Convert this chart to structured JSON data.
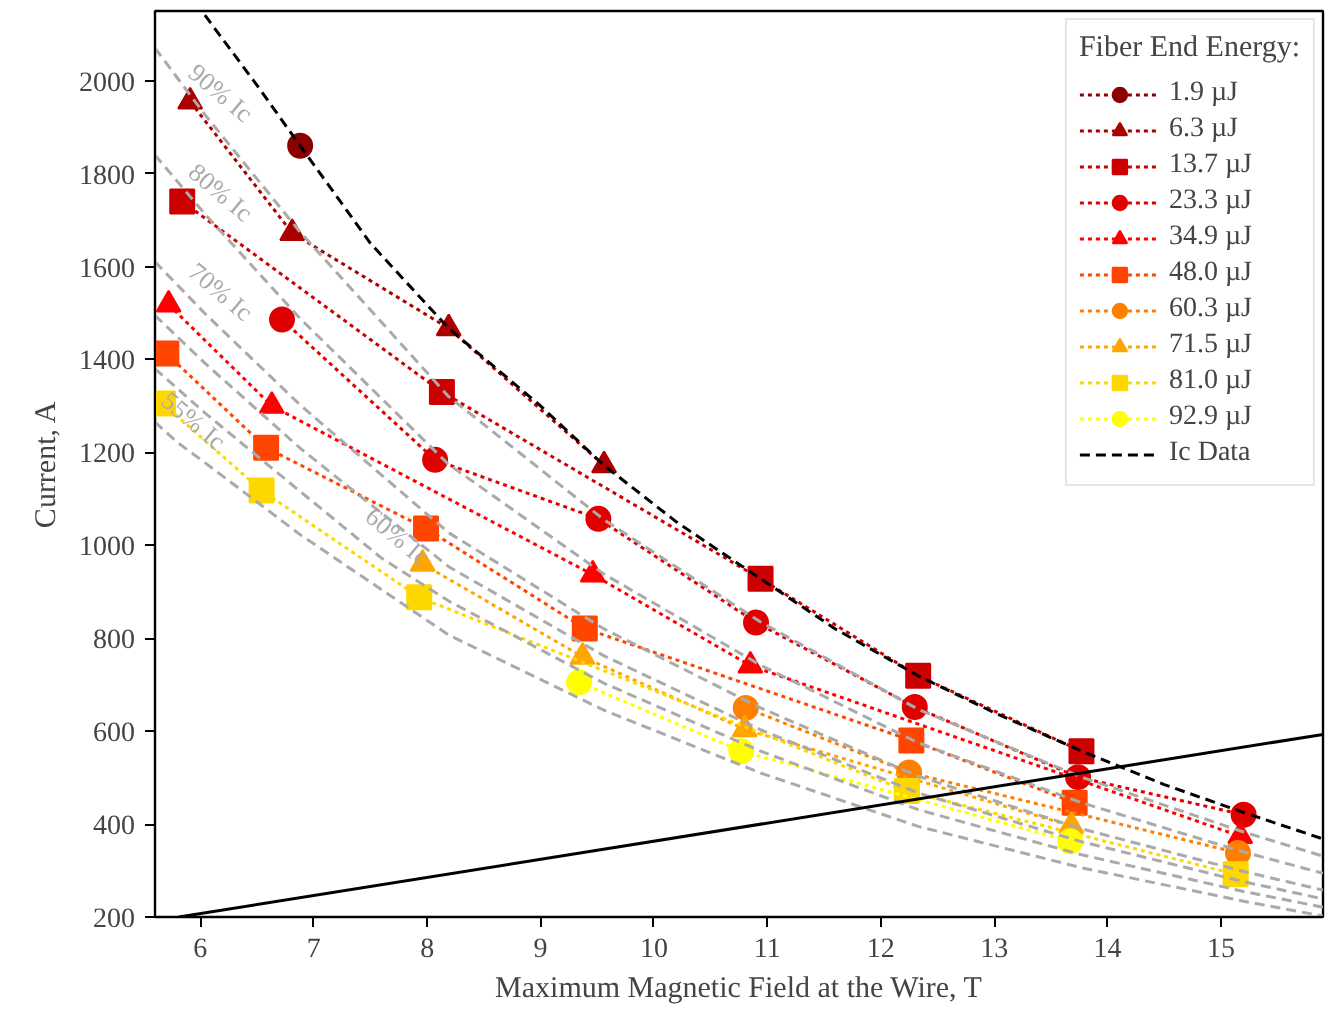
{
  "chart_data": {
    "type": "line",
    "xlabel": "Maximum Magnetic Field at the Wire, T",
    "ylabel": "Current, A",
    "legend_title": "Fiber End Energy:",
    "legend": "top right",
    "xlim": [
      5.6,
      15.9
    ],
    "ylim": [
      200,
      2150
    ],
    "xticks": [
      6,
      7,
      8,
      9,
      10,
      11,
      12,
      13,
      14,
      15
    ],
    "yticks": [
      200,
      400,
      600,
      800,
      1000,
      1200,
      1400,
      1600,
      1800,
      2000
    ],
    "annotations": [
      {
        "text": "90% Ic",
        "x": 6.04,
        "y": 1927
      },
      {
        "text": "80% Ic",
        "x": 6.04,
        "y": 1713
      },
      {
        "text": "70% Ic",
        "x": 6.04,
        "y": 1499
      },
      {
        "text": "60% Ic",
        "x": 7.6,
        "y": 972
      },
      {
        "text": "55% Ic",
        "x": 5.8,
        "y": 1221
      }
    ],
    "series": [
      {
        "name": "1.9 µJ",
        "color": "#8b0000",
        "marker": "circle",
        "line_style": "dotted",
        "x": [
          6.88
        ],
        "values": [
          1860
        ]
      },
      {
        "name": "6.3 µJ",
        "color": "#aa0000",
        "marker": "triangle",
        "line_style": "dotted",
        "x": [
          5.91,
          6.81,
          8.19,
          9.56
        ],
        "values": [
          1955,
          1672,
          1467,
          1172
        ]
      },
      {
        "name": "13.7 µJ",
        "color": "#cc0000",
        "marker": "square",
        "line_style": "dotted",
        "x": [
          5.84,
          8.13,
          10.94,
          12.33,
          13.77
        ],
        "values": [
          1740,
          1330,
          928,
          719,
          557
        ]
      },
      {
        "name": "23.3 µJ",
        "color": "#e00000",
        "marker": "circle",
        "line_style": "dotted",
        "x": [
          6.72,
          8.07,
          9.51,
          10.9,
          12.3,
          13.74,
          15.2
        ],
        "values": [
          1486,
          1184,
          1057,
          834,
          652,
          501,
          420
        ]
      },
      {
        "name": "34.9 µJ",
        "color": "#ff0000",
        "marker": "triangle",
        "line_style": "dotted",
        "x": [
          5.72,
          6.63,
          9.46,
          10.85,
          15.17
        ],
        "values": [
          1518,
          1300,
          937,
          741,
          374
        ]
      },
      {
        "name": "48.0 µJ",
        "color": "#ff4500",
        "marker": "square",
        "line_style": "dotted",
        "x": [
          5.7,
          6.58,
          7.99,
          9.39,
          12.27,
          13.71
        ],
        "values": [
          1413,
          1210,
          1036,
          821,
          580,
          446
        ]
      },
      {
        "name": "60.3 µJ",
        "color": "#ff8000",
        "marker": "circle",
        "line_style": "dotted",
        "x": [
          10.81,
          12.25,
          15.15
        ],
        "values": [
          650,
          511,
          338
        ]
      },
      {
        "name": "71.5 µJ",
        "color": "#ffa500",
        "marker": "triangle",
        "line_style": "dotted",
        "x": [
          7.96,
          9.37,
          10.8,
          13.68
        ],
        "values": [
          960,
          760,
          604,
          396
        ]
      },
      {
        "name": "81.0 µJ",
        "color": "#ffd700",
        "marker": "square",
        "line_style": "dotted",
        "x": [
          5.67,
          6.54,
          7.93,
          12.23,
          15.13
        ],
        "values": [
          1305,
          1118,
          888,
          471,
          292
        ]
      },
      {
        "name": "92.9 µJ",
        "color": "#ffff00",
        "marker": "circle",
        "line_style": "dotted",
        "x": [
          9.34,
          10.77,
          13.67
        ],
        "values": [
          705,
          557,
          363
        ]
      },
      {
        "name": "Ic Data",
        "color": "#000000",
        "marker": "none",
        "line_style": "dashed",
        "x": [
          6.04,
          6.5,
          6.88,
          7.5,
          8.19,
          9.0,
          9.56,
          10.2,
          10.94,
          11.6,
          12.33,
          13.0,
          13.77,
          14.5,
          15.2,
          15.9
        ],
        "values": [
          2141,
          1990,
          1860,
          1650,
          1467,
          1300,
          1172,
          1050,
          928,
          820,
          719,
          640,
          557,
          485,
          425,
          368
        ]
      },
      {
        "color": "#aaaaaa",
        "marker": "none",
        "line_style": "dashed",
        "x": [
          5.6,
          6.04,
          6.88,
          8.19,
          9.56,
          10.94,
          12.33,
          13.77,
          15.2,
          15.9
        ],
        "values": [
          2070,
          1927,
          1674,
          1320,
          1055,
          835,
          647,
          501,
          383,
          331
        ]
      },
      {
        "color": "#aaaaaa",
        "marker": "none",
        "line_style": "dashed",
        "x": [
          5.6,
          6.04,
          6.88,
          8.19,
          9.56,
          10.94,
          12.33,
          13.77,
          15.2,
          15.9
        ],
        "values": [
          1840,
          1713,
          1488,
          1174,
          938,
          742,
          575,
          446,
          340,
          294
        ]
      },
      {
        "color": "#aaaaaa",
        "marker": "none",
        "line_style": "dashed",
        "x": [
          5.6,
          6.04,
          6.88,
          8.19,
          9.56,
          10.94,
          12.33,
          13.77,
          15.2,
          15.9
        ],
        "values": [
          1610,
          1499,
          1302,
          1027,
          820,
          650,
          503,
          390,
          298,
          258
        ]
      },
      {
        "color": "#aaaaaa",
        "marker": "none",
        "line_style": "dashed",
        "x": [
          5.6,
          6.04,
          6.88,
          8.19,
          9.56,
          10.94,
          12.33,
          13.77,
          15.2,
          15.9
        ],
        "values": [
          1495,
          1392,
          1209,
          954,
          762,
          603,
          467,
          362,
          276,
          239
        ]
      },
      {
        "color": "#aaaaaa",
        "marker": "none",
        "line_style": "dashed",
        "x": [
          5.6,
          6.04,
          6.88,
          7.6,
          8.19,
          9.56,
          10.94,
          12.33,
          13.77,
          15.2,
          15.9
        ],
        "values": [
          1380,
          1285,
          1116,
          972,
          880,
          703,
          557,
          431,
          334,
          255,
          221
        ]
      },
      {
        "color": "#aaaaaa",
        "marker": "none",
        "line_style": "dashed",
        "x": [
          5.6,
          5.8,
          6.04,
          6.88,
          8.19,
          9.56,
          10.94,
          12.33,
          13.77,
          15.2,
          15.9
        ],
        "values": [
          1265,
          1221,
          1178,
          1023,
          807,
          645,
          510,
          395,
          306,
          234,
          202
        ]
      },
      {
        "color": "#000000",
        "marker": "none",
        "line_style": "solid",
        "x": [
          5.81,
          15.9
        ],
        "values": [
          200,
          593
        ]
      }
    ]
  }
}
